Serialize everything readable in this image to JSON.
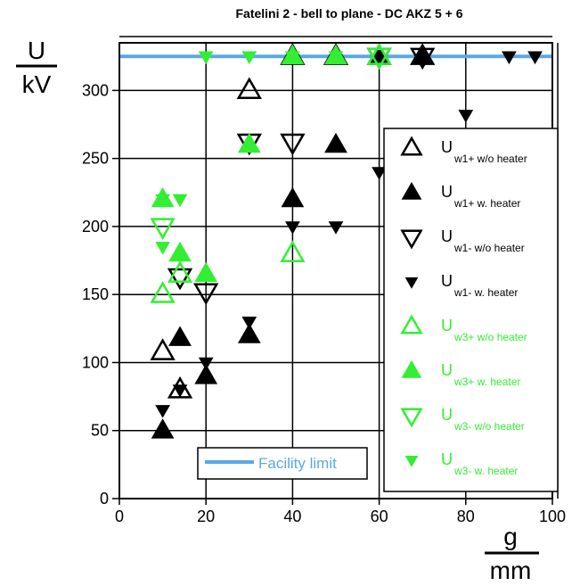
{
  "chart_data": {
    "type": "scatter",
    "title": "Fatelini 2 - bell to plane - DC AKZ 5 + 6",
    "ylabel_num": "U",
    "ylabel_den": "kV",
    "xlabel_num": "g",
    "xlabel_den": "mm",
    "xlim": [
      0,
      100
    ],
    "ylim": [
      0,
      335
    ],
    "x_ticks": [
      0,
      20,
      40,
      60,
      80,
      100
    ],
    "y_ticks": [
      0,
      50,
      100,
      150,
      200,
      250,
      300
    ],
    "grid": true,
    "legend_position": "right",
    "facility_limit": {
      "name": "Facility limit",
      "value": 325,
      "color": "#5aa9e6"
    },
    "colors": {
      "black": "#000000",
      "green": "#33ee33"
    },
    "series": [
      {
        "main": "U",
        "sub": "w1+ w/o heater",
        "marker": "triangle-up-open",
        "color": "#000000",
        "points": [
          [
            10,
            108
          ],
          [
            14,
            80
          ],
          [
            30,
            300
          ],
          [
            40,
            325
          ],
          [
            50,
            325
          ],
          [
            60,
            325
          ],
          [
            70,
            325
          ]
        ]
      },
      {
        "main": "U",
        "sub": "w1+ w. heater",
        "marker": "triangle-up-filled",
        "color": "#000000",
        "points": [
          [
            10,
            50
          ],
          [
            14,
            118
          ],
          [
            20,
            90
          ],
          [
            30,
            120
          ],
          [
            40,
            220
          ],
          [
            50,
            260
          ],
          [
            60,
            325
          ],
          [
            70,
            325
          ]
        ]
      },
      {
        "main": "U",
        "sub": "w1- w/o heater",
        "marker": "triangle-down-open",
        "color": "#000000",
        "points": [
          [
            14,
            163
          ],
          [
            20,
            152
          ],
          [
            30,
            262
          ],
          [
            40,
            262
          ],
          [
            60,
            325
          ],
          [
            70,
            325
          ]
        ]
      },
      {
        "main": "U",
        "sub": "w1- w. heater",
        "marker": "triangle-down-filled",
        "color": "#000000",
        "points": [
          [
            10,
            65
          ],
          [
            14,
            80
          ],
          [
            20,
            100
          ],
          [
            30,
            130
          ],
          [
            40,
            200
          ],
          [
            50,
            200
          ],
          [
            60,
            240
          ],
          [
            80,
            282
          ],
          [
            90,
            325
          ],
          [
            96,
            325
          ]
        ]
      },
      {
        "main": "U",
        "sub": "w3+ w/o heater",
        "marker": "triangle-up-open",
        "color": "#33ee33",
        "points": [
          [
            10,
            150
          ],
          [
            14,
            165
          ],
          [
            40,
            180
          ],
          [
            60,
            325
          ]
        ]
      },
      {
        "main": "U",
        "sub": "w3+ w. heater",
        "marker": "triangle-up-filled",
        "color": "#33ee33",
        "points": [
          [
            10,
            220
          ],
          [
            14,
            180
          ],
          [
            20,
            165
          ],
          [
            30,
            260
          ],
          [
            40,
            325
          ],
          [
            50,
            325
          ]
        ]
      },
      {
        "main": "U",
        "sub": "w3- w/o heater",
        "marker": "triangle-down-open",
        "color": "#33ee33",
        "points": [
          [
            10,
            200
          ],
          [
            60,
            325
          ]
        ]
      },
      {
        "main": "U",
        "sub": "w3- w. heater",
        "marker": "triangle-down-filled",
        "color": "#33ee33",
        "points": [
          [
            10,
            185
          ],
          [
            10,
            220
          ],
          [
            14,
            220
          ],
          [
            20,
            325
          ],
          [
            30,
            325
          ],
          [
            40,
            325
          ],
          [
            50,
            325
          ]
        ]
      }
    ]
  }
}
